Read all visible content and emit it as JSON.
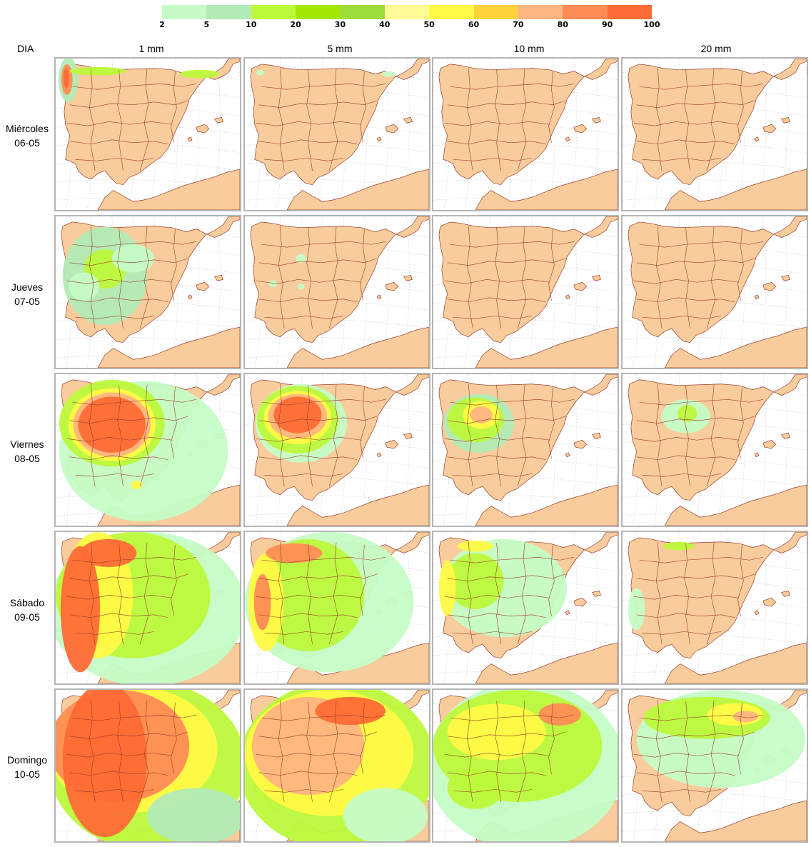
{
  "legend": {
    "colors": [
      "#c5fcc6",
      "#b2ebb6",
      "#bdf93b",
      "#a3e700",
      "#9cdd3b",
      "#fffc98",
      "#fffa46",
      "#ffd23c",
      "#ffb580",
      "#ff8c55",
      "#ff6b36"
    ],
    "ticks": [
      "2",
      "5",
      "10",
      "20",
      "30",
      "40",
      "50",
      "60",
      "70",
      "80",
      "90",
      "100"
    ]
  },
  "header": {
    "day_label": "DIA",
    "columns": [
      "1 mm",
      "5 mm",
      "10 mm",
      "20 mm"
    ]
  },
  "rows": [
    {
      "day": "Miércoles",
      "date": "06-05"
    },
    {
      "day": "Jueves",
      "date": "07-05"
    },
    {
      "day": "Viernes",
      "date": "08-05"
    },
    {
      "day": "Sábado",
      "date": "09-05"
    },
    {
      "day": "Domingo",
      "date": "10-05"
    }
  ],
  "colors": {
    "land": "#f8cc9c",
    "sea": "#ffffff",
    "border": "#9a3a28",
    "panel_border": "#b5b5b5"
  }
}
